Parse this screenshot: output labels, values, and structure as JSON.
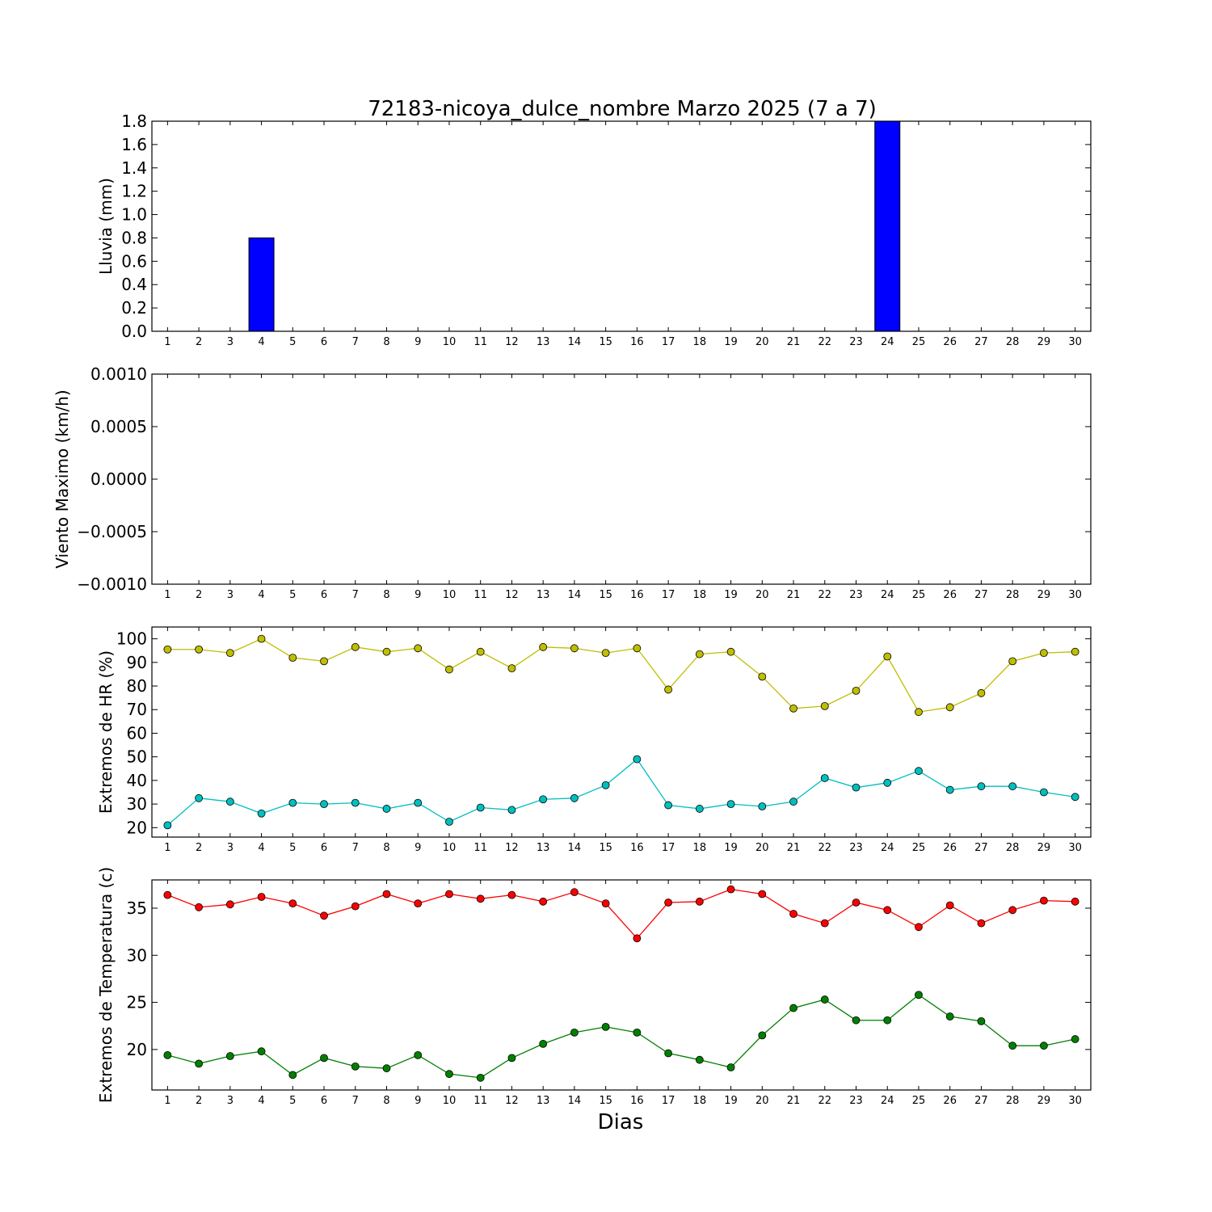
{
  "figure": {
    "title": "72183-nicoya_dulce_nombre Marzo 2025  (7 a 7)",
    "xlabel": "Dias"
  },
  "chart_data": [
    {
      "type": "bar",
      "ylabel": "Lluvia (mm)",
      "categories": [
        1,
        2,
        3,
        4,
        5,
        6,
        7,
        8,
        9,
        10,
        11,
        12,
        13,
        14,
        15,
        16,
        17,
        18,
        19,
        20,
        21,
        22,
        23,
        24,
        25,
        26,
        27,
        28,
        29,
        30
      ],
      "values": [
        0,
        0,
        0,
        0.8,
        0,
        0,
        0,
        0,
        0,
        0,
        0,
        0,
        0,
        0,
        0,
        0,
        0,
        0,
        0,
        0,
        0,
        0,
        0,
        1.8,
        0,
        0,
        0,
        0,
        0,
        0
      ],
      "ylim": [
        0,
        1.8
      ],
      "yticks": [
        "0.0",
        "0.2",
        "0.4",
        "0.6",
        "0.8",
        "1.0",
        "1.2",
        "1.4",
        "1.6",
        "1.8"
      ],
      "color": "#0000ff"
    },
    {
      "type": "line",
      "ylabel": "Viento Maximo (km/h)",
      "x": [
        1,
        2,
        3,
        4,
        5,
        6,
        7,
        8,
        9,
        10,
        11,
        12,
        13,
        14,
        15,
        16,
        17,
        18,
        19,
        20,
        21,
        22,
        23,
        24,
        25,
        26,
        27,
        28,
        29,
        30
      ],
      "series": [],
      "ylim": [
        -0.001,
        0.001
      ],
      "yticks": [
        "−0.0010",
        "−0.0005",
        "0.0000",
        "0.0005",
        "0.0010"
      ]
    },
    {
      "type": "line",
      "ylabel": "Extremos de HR (%)",
      "x": [
        1,
        2,
        3,
        4,
        5,
        6,
        7,
        8,
        9,
        10,
        11,
        12,
        13,
        14,
        15,
        16,
        17,
        18,
        19,
        20,
        21,
        22,
        23,
        24,
        25,
        26,
        27,
        28,
        29,
        30
      ],
      "series": [
        {
          "color": "#bfbf00",
          "values": [
            95.5,
            95.5,
            94,
            100,
            92,
            90.5,
            96.5,
            94.5,
            96,
            87,
            94.5,
            87.5,
            96.5,
            96,
            94,
            96,
            78.5,
            93.5,
            94.5,
            84,
            70.5,
            71.5,
            78,
            92.5,
            69,
            71,
            77,
            90.5,
            94,
            94.5
          ]
        },
        {
          "color": "#00bfbf",
          "values": [
            21,
            32.5,
            31,
            26,
            30.5,
            30,
            30.5,
            28,
            30.5,
            22.5,
            28.5,
            27.5,
            32,
            32.5,
            38,
            49,
            29.5,
            28,
            30,
            29,
            31,
            41,
            37,
            39,
            44,
            36,
            37.5,
            37.5,
            35,
            33
          ]
        }
      ],
      "ylim": [
        16,
        105
      ],
      "yticks": [
        "20",
        "30",
        "40",
        "50",
        "60",
        "70",
        "80",
        "90",
        "100"
      ]
    },
    {
      "type": "line",
      "ylabel": "Extremos de Temperatura (c)",
      "x": [
        1,
        2,
        3,
        4,
        5,
        6,
        7,
        8,
        9,
        10,
        11,
        12,
        13,
        14,
        15,
        16,
        17,
        18,
        19,
        20,
        21,
        22,
        23,
        24,
        25,
        26,
        27,
        28,
        29,
        30
      ],
      "series": [
        {
          "color": "#ff0000",
          "values": [
            36.4,
            35.1,
            35.4,
            36.2,
            35.5,
            34.2,
            35.2,
            36.5,
            35.5,
            36.5,
            36,
            36.4,
            35.7,
            36.7,
            35.5,
            31.8,
            35.6,
            35.7,
            37,
            36.5,
            34.4,
            33.4,
            35.6,
            34.8,
            33,
            35.3,
            33.4,
            34.8,
            35.8,
            35.7
          ]
        },
        {
          "color": "#008000",
          "values": [
            19.4,
            18.5,
            19.3,
            19.8,
            17.3,
            19.1,
            18.2,
            18,
            19.4,
            17.4,
            17,
            19.1,
            20.6,
            21.8,
            22.4,
            21.8,
            19.6,
            18.9,
            18.1,
            21.5,
            24.4,
            25.3,
            23.1,
            23.1,
            25.8,
            23.5,
            23,
            20.4,
            20.4,
            21.1
          ]
        }
      ],
      "ylim": [
        15.7,
        38
      ],
      "yticks": [
        "20",
        "25",
        "30",
        "35"
      ]
    }
  ]
}
